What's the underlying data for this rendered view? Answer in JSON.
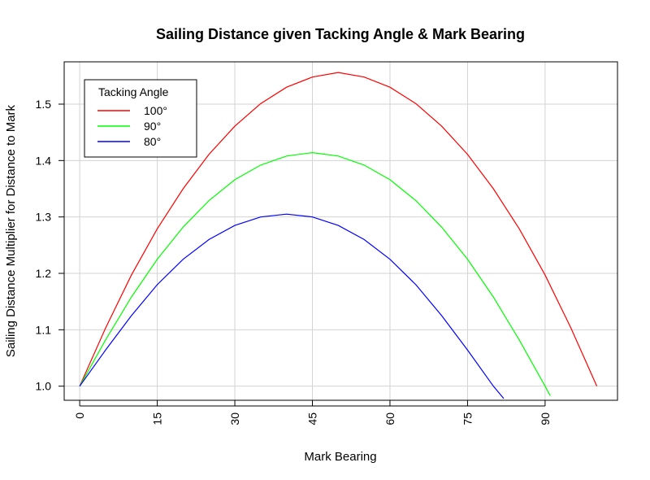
{
  "chart_data": {
    "type": "line",
    "title": "Sailing Distance given Tacking Angle & Mark Bearing",
    "xlabel": "Mark Bearing",
    "ylabel": "Sailing Distance Multiplier for Distance to Mark",
    "xlim": [
      -3,
      104
    ],
    "ylim": [
      0.975,
      1.575
    ],
    "xticks": [
      0,
      15,
      30,
      45,
      60,
      75,
      90
    ],
    "xtick_labels": [
      "0",
      "15",
      "30",
      "45",
      "60",
      "75",
      "90"
    ],
    "yticks": [
      1.0,
      1.1,
      1.2,
      1.3,
      1.4,
      1.5
    ],
    "ytick_labels": [
      "1.0",
      "1.1",
      "1.2",
      "1.3",
      "1.4",
      "1.5"
    ],
    "grid": true,
    "legend": {
      "title": "Tacking Angle",
      "position": "top-left",
      "entries": [
        "100°",
        "90°",
        "80°"
      ]
    },
    "series": [
      {
        "name": "100°",
        "color": "#ff0000",
        "x": [
          0,
          5,
          10,
          15,
          20,
          25,
          30,
          35,
          40,
          45,
          50,
          55,
          60,
          65,
          70,
          75,
          80,
          85,
          90,
          95,
          100
        ],
        "y": [
          1.0,
          1.103,
          1.197,
          1.279,
          1.35,
          1.411,
          1.461,
          1.501,
          1.53,
          1.548,
          1.556,
          1.548,
          1.53,
          1.501,
          1.461,
          1.411,
          1.35,
          1.279,
          1.197,
          1.103,
          1.0
        ]
      },
      {
        "name": "90°",
        "color": "#00ff00",
        "x": [
          0,
          5,
          10,
          15,
          20,
          25,
          30,
          35,
          40,
          45,
          50,
          55,
          60,
          65,
          70,
          75,
          80,
          85,
          90,
          91
        ],
        "y": [
          1.0,
          1.082,
          1.158,
          1.225,
          1.282,
          1.329,
          1.366,
          1.392,
          1.408,
          1.414,
          1.408,
          1.392,
          1.366,
          1.329,
          1.282,
          1.225,
          1.158,
          1.082,
          1.0,
          0.983
        ]
      },
      {
        "name": "80°",
        "color": "#0000ff",
        "x": [
          0,
          5,
          10,
          15,
          20,
          25,
          30,
          35,
          40,
          45,
          50,
          55,
          60,
          65,
          70,
          75,
          80,
          82
        ],
        "y": [
          1.0,
          1.064,
          1.125,
          1.18,
          1.225,
          1.26,
          1.285,
          1.3,
          1.305,
          1.3,
          1.285,
          1.26,
          1.225,
          1.18,
          1.125,
          1.064,
          1.0,
          0.978
        ]
      }
    ]
  }
}
